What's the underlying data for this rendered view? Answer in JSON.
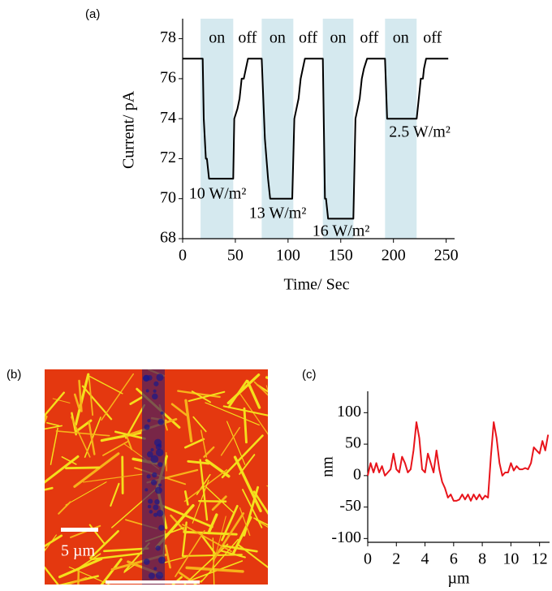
{
  "chart_data": [
    {
      "type": "line",
      "panel_label": "(a)",
      "xlabel": "Time/ Sec",
      "ylabel": "Current/ pA",
      "color": "#000000",
      "x": [
        0,
        19,
        20,
        22,
        23,
        24,
        25,
        48,
        49,
        52,
        54,
        56,
        58,
        60,
        62,
        75,
        78,
        81,
        83,
        104,
        106,
        108,
        110,
        112,
        114,
        116,
        133,
        135,
        136,
        138,
        162,
        164,
        166,
        168,
        170,
        172,
        175,
        192,
        194,
        222,
        224,
        226,
        228,
        229,
        231,
        252
      ],
      "values": [
        77,
        77,
        74,
        72,
        72,
        71.5,
        71,
        71,
        74,
        74.5,
        75,
        76,
        76,
        76.5,
        77,
        77,
        73,
        71,
        70,
        70,
        74,
        74.5,
        75,
        76,
        76.5,
        77,
        77,
        70,
        70,
        69,
        69,
        74,
        74.5,
        75,
        76,
        76.5,
        77,
        77,
        74,
        74,
        75,
        76,
        76,
        76.5,
        77,
        77
      ],
      "xlim": [
        0,
        258
      ],
      "xticks": [
        0,
        50,
        100,
        150,
        200,
        250
      ],
      "ylim": [
        68,
        79
      ],
      "yticks": [
        68,
        70,
        72,
        74,
        76,
        78
      ],
      "shaded": [
        [
          17,
          48
        ],
        [
          75,
          105
        ],
        [
          133,
          162
        ],
        [
          192,
          222
        ]
      ],
      "shade_color": "#d5e9ef",
      "state_labels": [
        "on",
        "off",
        "on",
        "off",
        "on",
        "off",
        "on",
        "off"
      ],
      "annotations": [
        "10 W/m²",
        "13 W/m²",
        "16 W/m²",
        "2.5 W/m²"
      ]
    },
    {
      "type": "line",
      "panel_label": "(c)",
      "xlabel": "µm",
      "ylabel": "nm",
      "color": "#e8141b",
      "x": [
        0,
        0.2,
        0.4,
        0.6,
        0.8,
        1.0,
        1.2,
        1.4,
        1.6,
        1.8,
        2.0,
        2.2,
        2.4,
        2.6,
        2.8,
        3.0,
        3.2,
        3.4,
        3.6,
        3.8,
        4.0,
        4.2,
        4.4,
        4.6,
        4.8,
        5.0,
        5.2,
        5.4,
        5.6,
        5.8,
        6.0,
        6.2,
        6.4,
        6.6,
        6.8,
        7.0,
        7.2,
        7.4,
        7.6,
        7.8,
        8.0,
        8.2,
        8.4,
        8.6,
        8.8,
        9.0,
        9.2,
        9.4,
        9.6,
        9.8,
        10.0,
        10.2,
        10.4,
        10.6,
        10.8,
        11.0,
        11.2,
        11.4,
        11.6,
        11.8,
        12.0,
        12.2,
        12.4,
        12.6
      ],
      "values": [
        0,
        20,
        5,
        20,
        5,
        15,
        0,
        5,
        10,
        35,
        10,
        5,
        30,
        20,
        5,
        10,
        40,
        85,
        60,
        10,
        5,
        35,
        20,
        5,
        40,
        10,
        -10,
        -20,
        -35,
        -30,
        -40,
        -40,
        -38,
        -30,
        -38,
        -30,
        -40,
        -30,
        -38,
        -30,
        -38,
        -32,
        -35,
        30,
        85,
        60,
        20,
        0,
        5,
        5,
        20,
        8,
        15,
        10,
        10,
        12,
        10,
        20,
        45,
        40,
        35,
        55,
        40,
        65
      ],
      "xlim": [
        0,
        12.7
      ],
      "xticks": [
        0,
        2,
        4,
        6,
        8,
        10,
        12
      ],
      "ylim": [
        -106,
        134
      ],
      "yticks": [
        -100,
        -50,
        0,
        50,
        100
      ]
    }
  ],
  "image_panel": {
    "panel_label": "(b)",
    "scale_bar_label": "5 µm"
  }
}
